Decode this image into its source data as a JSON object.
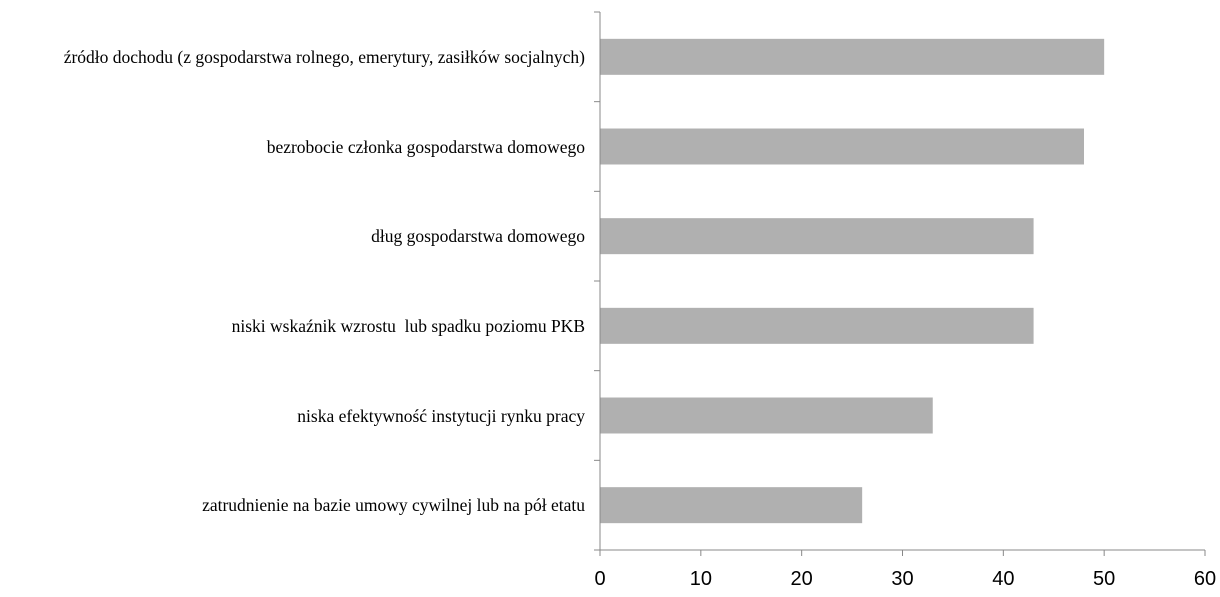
{
  "chart_data": {
    "type": "barh",
    "categories": [
      "źródło dochodu (z gospodarstwa rolnego, emerytury, zasiłków socjalnych)",
      "bezrobocie członka gospodarstwa domowego",
      "dług gospodarstwa domowego",
      "niski wskaźnik wzrostu  lub spadku poziomu PKB",
      "niska efektywność instytucji rynku pracy",
      "zatrudnienie na bazie umowy cywilnej lub na pół etatu"
    ],
    "values": [
      50,
      48,
      43,
      43,
      33,
      26
    ],
    "color": "#b0b0b0",
    "xlim": [
      0,
      60
    ],
    "xticks": [
      0,
      10,
      20,
      30,
      40,
      50,
      60
    ]
  }
}
